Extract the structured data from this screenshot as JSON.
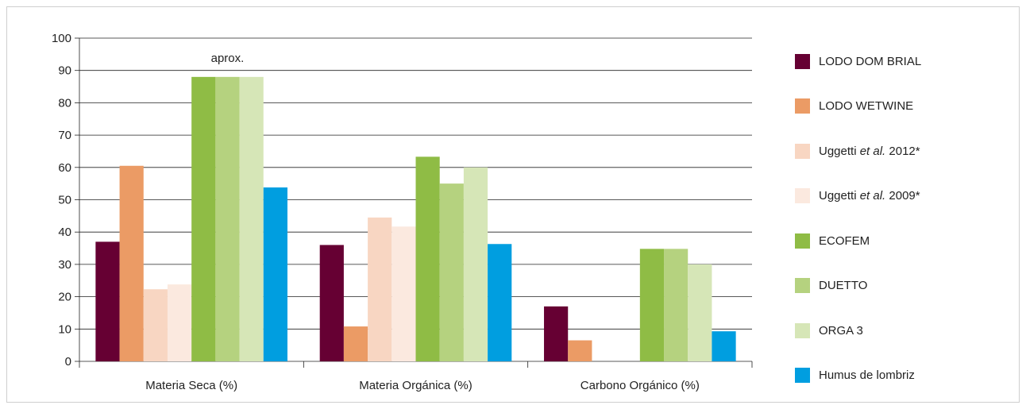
{
  "chart_data": {
    "type": "bar",
    "categories": [
      "Materia Seca (%)",
      "Materia Orgánica (%)",
      "Carbono Orgánico (%)"
    ],
    "ylim": [
      0,
      100
    ],
    "yticks": [
      0,
      10,
      20,
      30,
      40,
      50,
      60,
      70,
      80,
      90,
      100
    ],
    "grid": true,
    "legend_position": "right",
    "annotation": {
      "text": "aprox.",
      "category": "Materia Seca (%)"
    },
    "series": [
      {
        "name": "LODO DOM BRIAL",
        "name_pre": "LODO DOM BRIAL",
        "name_italic": "",
        "name_post": "",
        "color": "#660033",
        "values": [
          37,
          36,
          17
        ]
      },
      {
        "name": "LODO WETWINE",
        "name_pre": "LODO WETWINE",
        "name_italic": "",
        "name_post": "",
        "color": "#eb9b65",
        "values": [
          60.5,
          10.8,
          6.5
        ]
      },
      {
        "name": "Uggetti et al. 2012*",
        "name_pre": "Uggetti ",
        "name_italic": "et al.",
        "name_post": " 2012*",
        "color": "#f8d6c2",
        "values": [
          22.3,
          44.5,
          null
        ]
      },
      {
        "name": "Uggetti et al. 2009*",
        "name_pre": "Uggetti ",
        "name_italic": "et al.",
        "name_post": " 2009*",
        "color": "#fbe9df",
        "values": [
          23.8,
          41.7,
          null
        ]
      },
      {
        "name": "ECOFEM",
        "name_pre": "ECOFEM",
        "name_italic": "",
        "name_post": "",
        "color": "#8fbc45",
        "values": [
          88,
          63.3,
          34.8
        ]
      },
      {
        "name": "DUETTO",
        "name_pre": "DUETTO",
        "name_italic": "",
        "name_post": "",
        "color": "#b5d27f",
        "values": [
          88,
          55,
          34.8
        ]
      },
      {
        "name": "ORGA 3",
        "name_pre": "ORGA 3",
        "name_italic": "",
        "name_post": "",
        "color": "#d6e6b7",
        "values": [
          88,
          60,
          30
        ]
      },
      {
        "name": "Humus de lombriz",
        "name_pre": "Humus de lombriz",
        "name_italic": "",
        "name_post": "",
        "color": "#009ee0",
        "values": [
          53.8,
          36.3,
          9.3
        ]
      }
    ]
  }
}
